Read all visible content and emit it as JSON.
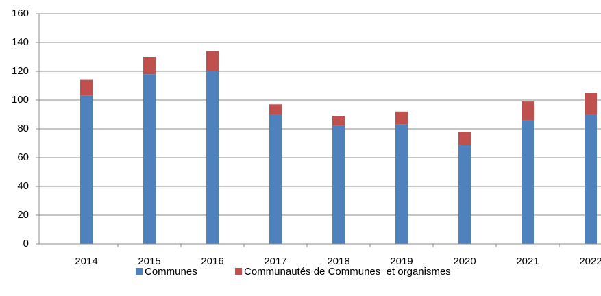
{
  "chart_data": {
    "type": "stacked_bar",
    "categories": [
      "2014",
      "2015",
      "2016",
      "2017",
      "2018",
      "2019",
      "2020",
      "2021",
      "2022"
    ],
    "series": [
      {
        "name": "Communes",
        "color": "#4f81bd",
        "values": [
          103,
          118,
          120,
          90,
          82,
          83,
          69,
          86,
          90
        ]
      },
      {
        "name": "Communautés de Communes  et organismes",
        "color": "#c0504d",
        "values": [
          11,
          12,
          14,
          7,
          7,
          9,
          9,
          13,
          15
        ]
      }
    ],
    "ylim": [
      0,
      160
    ],
    "yticks": [
      0,
      20,
      40,
      60,
      80,
      100,
      120,
      140,
      160
    ],
    "grid": true,
    "legend": "bottom"
  }
}
